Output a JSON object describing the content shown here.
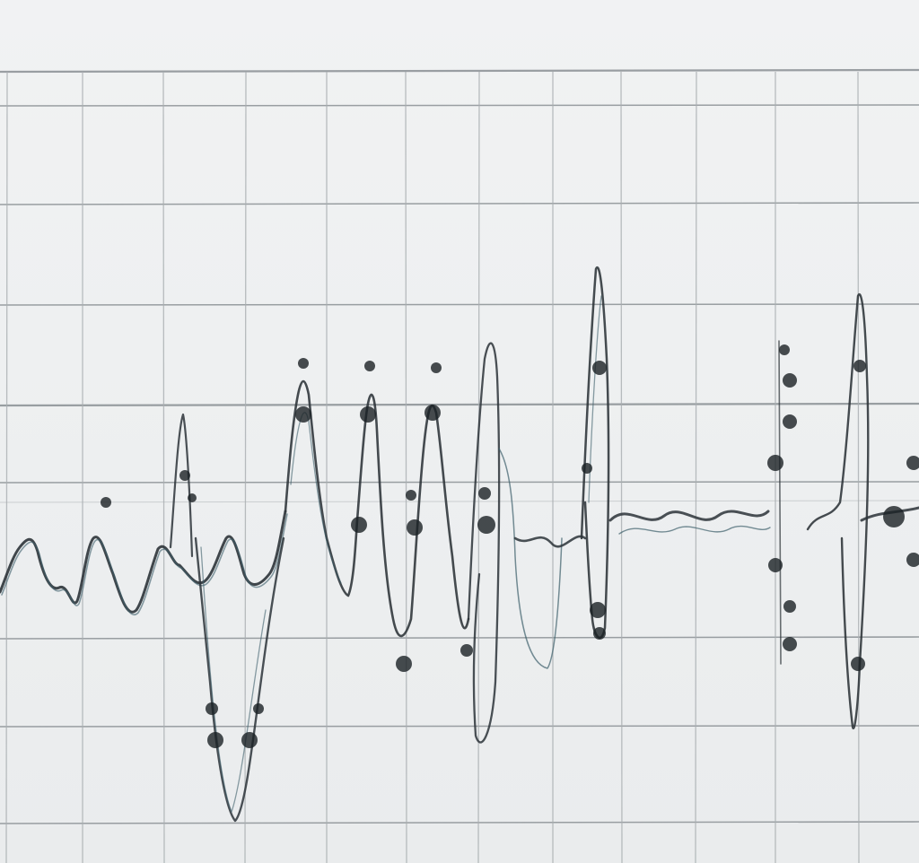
{
  "scene": {
    "description_tag": "hand-drawn-waveform-sketch",
    "colors": {
      "paper": "#eef0f1",
      "grid_line": "#8a9094",
      "grid_line_light": "#a9aeb1",
      "ink": "#2c3338",
      "ink_dark": "#1a2024",
      "ink_accent": "#3d5f6b"
    }
  }
}
